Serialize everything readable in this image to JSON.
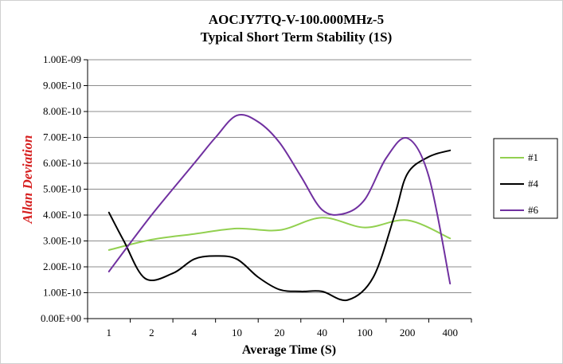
{
  "chart_data": {
    "type": "line",
    "title": "AOCJY7TQ-V-100.000MHz-5",
    "subtitle": "Typical Short Term Stability (1S)",
    "xlabel": "Average Time (S)",
    "ylabel": "Allan Deviation",
    "categories": [
      "1",
      "2",
      "4",
      "10",
      "20",
      "40",
      "100",
      "200",
      "400"
    ],
    "y_ticks": [
      "0.00E+00",
      "1.00E-10",
      "2.00E-10",
      "3.00E-10",
      "4.00E-10",
      "5.00E-10",
      "6.00E-10",
      "7.00E-10",
      "8.00E-10",
      "9.00E-10",
      "1.00E-09"
    ],
    "ylim": [
      0,
      1e-09
    ],
    "grid": true,
    "legend_position": "right",
    "series": [
      {
        "name": "#1",
        "color": "#92d050",
        "points": [
          [
            0,
            2.65e-10
          ],
          [
            1,
            3.05e-10
          ],
          [
            2,
            3.27e-10
          ],
          [
            3,
            3.48e-10
          ],
          [
            4,
            3.42e-10
          ],
          [
            5,
            3.9e-10
          ],
          [
            6,
            3.52e-10
          ],
          [
            7,
            3.8e-10
          ],
          [
            8,
            3.1e-10
          ]
        ]
      },
      {
        "name": "#4",
        "color": "#000000",
        "points": [
          [
            0,
            4.1e-10
          ],
          [
            0.35,
            3e-10
          ],
          [
            0.85,
            1.55e-10
          ],
          [
            1.5,
            1.75e-10
          ],
          [
            2,
            2.3e-10
          ],
          [
            2.5,
            2.42e-10
          ],
          [
            3,
            2.3e-10
          ],
          [
            3.5,
            1.6e-10
          ],
          [
            4,
            1.12e-10
          ],
          [
            4.5,
            1.05e-10
          ],
          [
            5,
            1.05e-10
          ],
          [
            5.6,
            7.2e-11
          ],
          [
            6.2,
            1.6e-10
          ],
          [
            6.7,
            4e-10
          ],
          [
            7,
            5.6e-10
          ],
          [
            7.5,
            6.25e-10
          ],
          [
            8,
            6.5e-10
          ]
        ]
      },
      {
        "name": "#6",
        "color": "#7030a0",
        "points": [
          [
            0,
            1.82e-10
          ],
          [
            1,
            4e-10
          ],
          [
            2,
            6e-10
          ],
          [
            2.5,
            7e-10
          ],
          [
            3,
            7.85e-10
          ],
          [
            3.5,
            7.6e-10
          ],
          [
            4,
            6.8e-10
          ],
          [
            4.5,
            5.5e-10
          ],
          [
            5,
            4.2e-10
          ],
          [
            5.5,
            4.05e-10
          ],
          [
            6,
            4.6e-10
          ],
          [
            6.5,
            6.2e-10
          ],
          [
            7,
            6.97e-10
          ],
          [
            7.5,
            5.5e-10
          ],
          [
            8,
            1.35e-10
          ]
        ]
      }
    ]
  }
}
